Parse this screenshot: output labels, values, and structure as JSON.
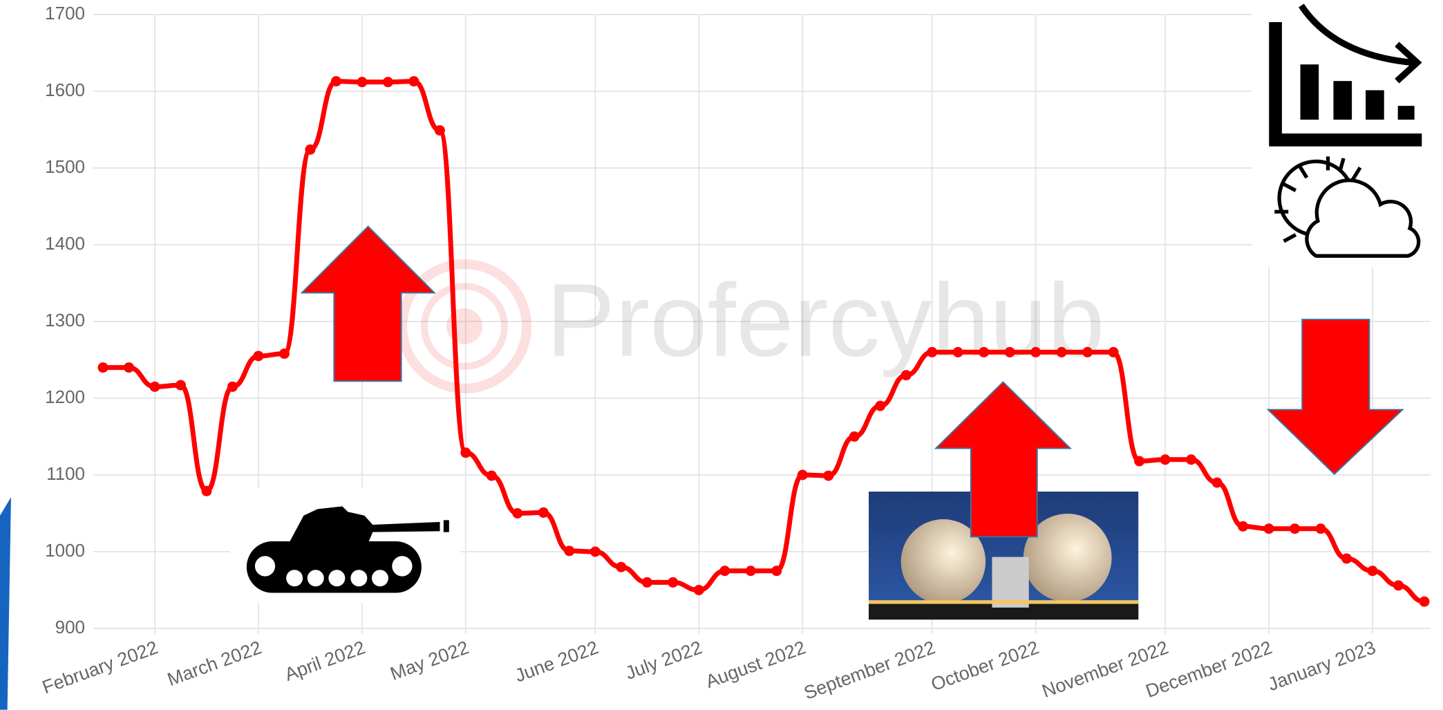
{
  "chart_data": {
    "type": "line",
    "watermark": "Profercyhub",
    "categories": [
      null,
      null,
      "February 2022",
      null,
      null,
      null,
      "March 2022",
      null,
      null,
      null,
      "April 2022",
      null,
      null,
      null,
      "May 2022",
      null,
      null,
      null,
      null,
      "June 2022",
      null,
      null,
      null,
      "July 2022",
      null,
      null,
      null,
      "August 2022",
      null,
      null,
      null,
      null,
      "September 2022",
      null,
      null,
      null,
      "October 2022",
      null,
      null,
      null,
      null,
      "November 2022",
      null,
      null,
      null,
      "December 2022",
      null,
      null,
      null,
      "January 2023",
      null,
      null
    ],
    "series": [
      {
        "color": "#ff0000",
        "values": [
          1240,
          1240,
          1215,
          1217,
          1079,
          1215,
          1255,
          1258,
          1524,
          1613,
          1612,
          1612,
          1613,
          1549,
          1129,
          1099,
          1050,
          1051,
          1001,
          1000,
          980,
          960,
          960,
          950,
          975,
          975,
          975,
          1100,
          1099,
          1150,
          1190,
          1230,
          1260,
          1260,
          1260,
          1260,
          1260,
          1260,
          1260,
          1260,
          1118,
          1120,
          1120,
          1090,
          1033,
          1030,
          1030,
          1030,
          991,
          975,
          956,
          935
        ]
      }
    ],
    "ylim": [
      900,
      1700
    ],
    "yticks": [
      900,
      1000,
      1100,
      1200,
      1300,
      1400,
      1500,
      1600,
      1700
    ],
    "grid": true
  }
}
